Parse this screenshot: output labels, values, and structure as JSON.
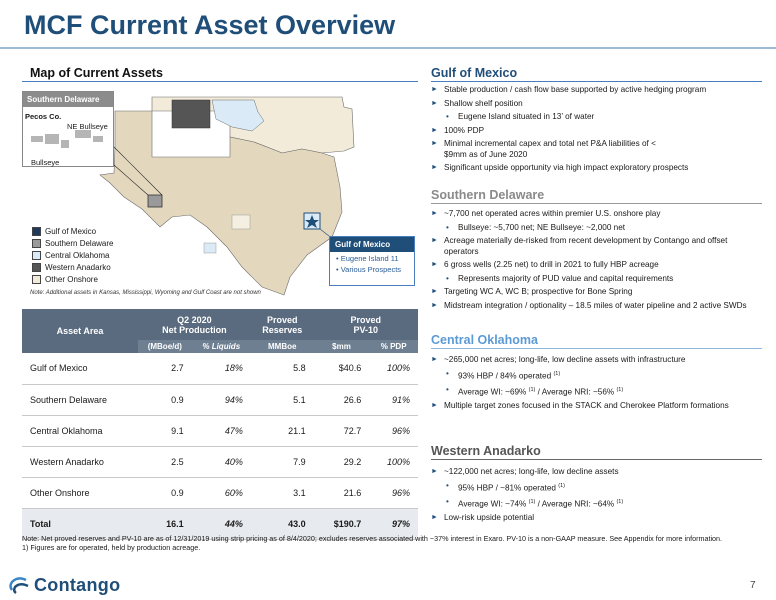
{
  "title": "MCF Current Asset Overview",
  "map": {
    "heading": "Map of Current Assets",
    "inset_sd": {
      "title": "Southern Delaware",
      "labels": [
        "Pecos Co.",
        "NE Bullseye",
        "Bullseye"
      ]
    },
    "inset_gom": {
      "title": "Gulf of Mexico",
      "items": [
        "Eugene Island 11",
        "Various Prospects"
      ]
    },
    "legend": [
      {
        "label": "Gulf of Mexico",
        "color": "#1f3a5f"
      },
      {
        "label": "Southern Delaware",
        "color": "#9a9a9a"
      },
      {
        "label": "Central Oklahoma",
        "color": "#dbeaf7"
      },
      {
        "label": "Western Anadarko",
        "color": "#555555"
      },
      {
        "label": "Other Onshore",
        "color": "#f2ebd9"
      }
    ],
    "note": "Note: Additional assets in Kansas, Mississippi, Wyoming and Gulf Coast are not shown"
  },
  "table": {
    "headers": {
      "asset_area": "Asset Area",
      "q2": "Q2 2020\nNet Production",
      "proved_reserves": "Proved\nReserves",
      "proved_pv": "Proved\nPV-10"
    },
    "sub_headers": [
      "(MBoe/d)",
      "% Liquids",
      "MMBoe",
      "$mm",
      "% PDP"
    ],
    "rows": [
      {
        "name": "Gulf of Mexico",
        "prod": "2.7",
        "liq": "18%",
        "res": "5.8",
        "pv": "$40.6",
        "pdp": "100%"
      },
      {
        "name": "Southern Delaware",
        "prod": "0.9",
        "liq": "94%",
        "res": "5.1",
        "pv": "26.6",
        "pdp": "91%"
      },
      {
        "name": "Central Oklahoma",
        "prod": "9.1",
        "liq": "47%",
        "res": "21.1",
        "pv": "72.7",
        "pdp": "96%"
      },
      {
        "name": "Western Anadarko",
        "prod": "2.5",
        "liq": "40%",
        "res": "7.9",
        "pv": "29.2",
        "pdp": "100%"
      },
      {
        "name": "Other Onshore",
        "prod": "0.9",
        "liq": "60%",
        "res": "3.1",
        "pv": "21.6",
        "pdp": "96%"
      }
    ],
    "total": {
      "name": "Total",
      "prod": "16.1",
      "liq": "44%",
      "res": "43.0",
      "pv": "$190.7",
      "pdp": "97%"
    }
  },
  "gom": {
    "heading": "Gulf of Mexico",
    "b1": "Stable production / cash flow base supported by active hedging program",
    "b2": "Shallow shelf position",
    "s1": "Eugene Island situated in 13’ of water",
    "b3": "100% PDP",
    "b4": "Minimal incremental capex and total net P&A liabilities of < $9mm as of June 2020",
    "b5": "Significant upside opportunity via high impact exploratory prospects"
  },
  "sd": {
    "heading": "Southern Delaware",
    "b1": "~7,700 net operated acres within premier U.S. onshore play",
    "s1": "Bullseye: ~5,700 net; NE Bullseye: ~2,000 net",
    "b2": "Acreage materially de-risked from recent development by Contango and offset operators",
    "b3": "6 gross wells (2.25 net) to drill in 2021 to fully HBP acreage",
    "s2": "Represents majority of PUD value and capital requirements",
    "b4": "Targeting WC A, WC B; prospective for Bone Spring",
    "b5": "Midstream integration / optionality – 18.5 miles of water pipeline and 2 active SWDs"
  },
  "co": {
    "heading": "Central Oklahoma",
    "b1": "~265,000 net acres; long-life, low decline assets with infrastructure",
    "s1": "93% HBP / 84% operated",
    "s2a": "Average WI: ~69%",
    "s2b": " / Average NRI: ~56%",
    "b2": "Multiple target zones focused in the STACK and Cherokee Platform formations"
  },
  "wa": {
    "heading": "Western Anadarko",
    "b1": "~122,000 net acres; long-life, low decline assets",
    "s1": "95% HBP / ~81% operated",
    "s2a": "Average WI: ~74%",
    "s2b": " / Average NRI: ~64%",
    "b2": "Low-risk upside potential"
  },
  "footnote_mark": "(1)",
  "note1": "Note: Net proved reserves and PV-10 are as of 12/31/2019 using strip pricing as of 8/4/2020; excludes reserves associated with ~37% interest in Exaro. PV-10 is a non-GAAP measure. See Appendix for more information.",
  "note2": "1)    Figures are for operated, held by production acreage.",
  "logo": "Contango",
  "page_number": "7"
}
